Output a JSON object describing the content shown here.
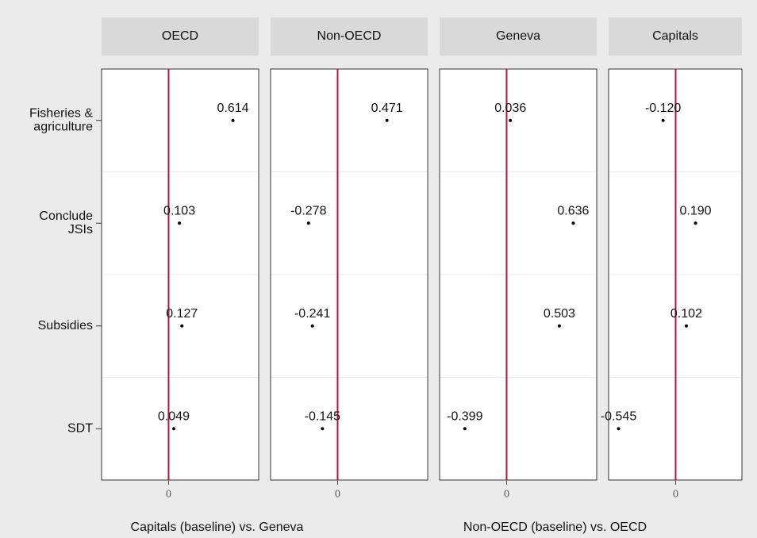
{
  "chart_data": {
    "type": "dot",
    "categories": [
      "Fisheries &\nagriculture",
      "Conclude\nJSIs",
      "Subsidies",
      "SDT"
    ],
    "series": [
      {
        "name": "OECD",
        "color": "#000000",
        "values": [
          0.614,
          0.103,
          0.127,
          0.049
        ],
        "value_labels": [
          "0.614",
          "0.103",
          "0.127",
          "0.049"
        ]
      },
      {
        "name": "Non-OECD",
        "color": "#000000",
        "values": [
          0.471,
          -0.278,
          -0.241,
          -0.145
        ],
        "value_labels": [
          "0.471",
          "-0.278",
          "-0.241",
          "-0.145"
        ]
      },
      {
        "name": "Geneva",
        "color": "#000000",
        "values": [
          0.036,
          0.636,
          0.503,
          -0.399
        ],
        "value_labels": [
          "0.036",
          "0.636",
          "0.503",
          "-0.399"
        ]
      },
      {
        "name": "Capitals",
        "color": "#000000",
        "values": [
          -0.12,
          0.19,
          0.102,
          -0.545
        ],
        "value_labels": [
          "-0.120",
          "0.190",
          "0.102",
          "-0.545"
        ]
      }
    ],
    "xlim": [
      -0.64,
      0.86
    ],
    "xticks": [
      0
    ],
    "reference_line_color": "#b5123e",
    "axis_labels": [
      "Capitals (baseline) vs. Geneva",
      "Non-OECD (baseline) vs. OECD"
    ]
  }
}
